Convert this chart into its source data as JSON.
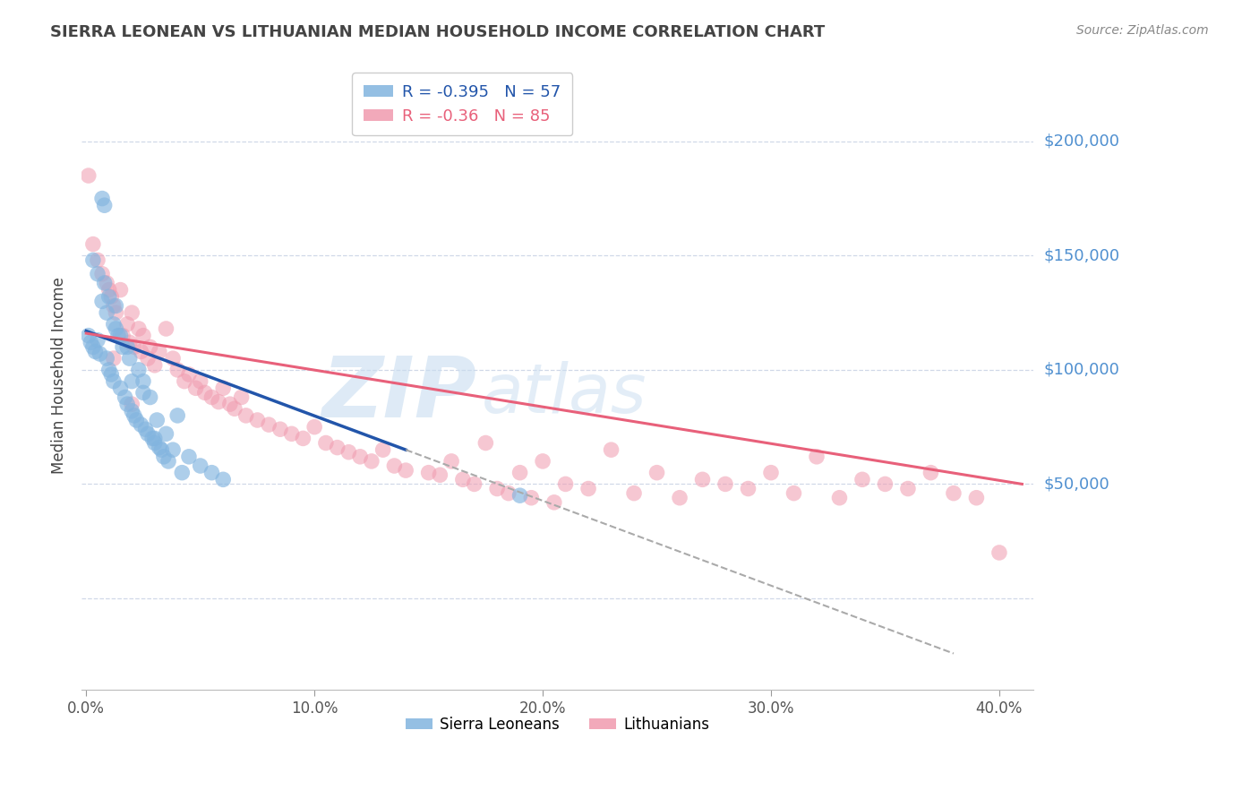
{
  "title": "SIERRA LEONEAN VS LITHUANIAN MEDIAN HOUSEHOLD INCOME CORRELATION CHART",
  "source": "Source: ZipAtlas.com",
  "ylabel": "Median Household Income",
  "xlabel_ticks": [
    "0.0%",
    "10.0%",
    "20.0%",
    "30.0%",
    "40.0%"
  ],
  "xlabel_values": [
    0.0,
    0.1,
    0.2,
    0.3,
    0.4
  ],
  "ytick_values": [
    0,
    50000,
    100000,
    150000,
    200000
  ],
  "sl_color": "#82b4df",
  "lt_color": "#f09aae",
  "sl_line_color": "#2255aa",
  "lt_line_color": "#e8607a",
  "R_sl": -0.395,
  "N_sl": 57,
  "R_lt": -0.36,
  "N_lt": 85,
  "watermark_zip": "ZIP",
  "watermark_atlas": "atlas",
  "bg_color": "#ffffff",
  "grid_color": "#d0d8e8",
  "right_label_color": "#5090d0",
  "title_color": "#444444",
  "sl_scatter_x": [
    0.001,
    0.002,
    0.003,
    0.004,
    0.005,
    0.006,
    0.007,
    0.008,
    0.009,
    0.01,
    0.011,
    0.012,
    0.013,
    0.014,
    0.015,
    0.016,
    0.017,
    0.018,
    0.019,
    0.02,
    0.021,
    0.022,
    0.023,
    0.024,
    0.025,
    0.026,
    0.027,
    0.028,
    0.029,
    0.03,
    0.031,
    0.032,
    0.033,
    0.034,
    0.035,
    0.036,
    0.038,
    0.04,
    0.042,
    0.045,
    0.05,
    0.055,
    0.06,
    0.007,
    0.009,
    0.012,
    0.015,
    0.018,
    0.003,
    0.005,
    0.008,
    0.01,
    0.013,
    0.02,
    0.025,
    0.03,
    0.19
  ],
  "sl_scatter_y": [
    115000,
    112000,
    110000,
    108000,
    113000,
    107000,
    175000,
    172000,
    105000,
    100000,
    98000,
    95000,
    118000,
    115000,
    92000,
    110000,
    88000,
    85000,
    105000,
    82000,
    80000,
    78000,
    100000,
    76000,
    95000,
    74000,
    72000,
    88000,
    70000,
    68000,
    78000,
    66000,
    65000,
    62000,
    72000,
    60000,
    65000,
    80000,
    55000,
    62000,
    58000,
    55000,
    52000,
    130000,
    125000,
    120000,
    115000,
    110000,
    148000,
    142000,
    138000,
    132000,
    128000,
    95000,
    90000,
    70000,
    45000
  ],
  "lt_scatter_x": [
    0.001,
    0.003,
    0.005,
    0.007,
    0.009,
    0.01,
    0.011,
    0.012,
    0.013,
    0.015,
    0.016,
    0.018,
    0.019,
    0.02,
    0.021,
    0.023,
    0.024,
    0.025,
    0.027,
    0.028,
    0.03,
    0.032,
    0.035,
    0.038,
    0.04,
    0.043,
    0.045,
    0.048,
    0.05,
    0.052,
    0.055,
    0.058,
    0.06,
    0.063,
    0.065,
    0.068,
    0.07,
    0.075,
    0.08,
    0.085,
    0.09,
    0.095,
    0.1,
    0.105,
    0.11,
    0.115,
    0.12,
    0.125,
    0.13,
    0.135,
    0.14,
    0.15,
    0.155,
    0.16,
    0.165,
    0.17,
    0.175,
    0.18,
    0.185,
    0.19,
    0.195,
    0.2,
    0.205,
    0.21,
    0.22,
    0.23,
    0.24,
    0.25,
    0.26,
    0.27,
    0.28,
    0.29,
    0.3,
    0.31,
    0.32,
    0.33,
    0.34,
    0.35,
    0.36,
    0.37,
    0.38,
    0.39,
    0.4,
    0.012,
    0.02
  ],
  "lt_scatter_y": [
    185000,
    155000,
    148000,
    142000,
    138000,
    135000,
    132000,
    128000,
    125000,
    135000,
    115000,
    120000,
    112000,
    125000,
    110000,
    118000,
    108000,
    115000,
    105000,
    110000,
    102000,
    108000,
    118000,
    105000,
    100000,
    95000,
    98000,
    92000,
    95000,
    90000,
    88000,
    86000,
    92000,
    85000,
    83000,
    88000,
    80000,
    78000,
    76000,
    74000,
    72000,
    70000,
    75000,
    68000,
    66000,
    64000,
    62000,
    60000,
    65000,
    58000,
    56000,
    55000,
    54000,
    60000,
    52000,
    50000,
    68000,
    48000,
    46000,
    55000,
    44000,
    60000,
    42000,
    50000,
    48000,
    65000,
    46000,
    55000,
    44000,
    52000,
    50000,
    48000,
    55000,
    46000,
    62000,
    44000,
    52000,
    50000,
    48000,
    55000,
    46000,
    44000,
    20000,
    105000,
    85000
  ]
}
